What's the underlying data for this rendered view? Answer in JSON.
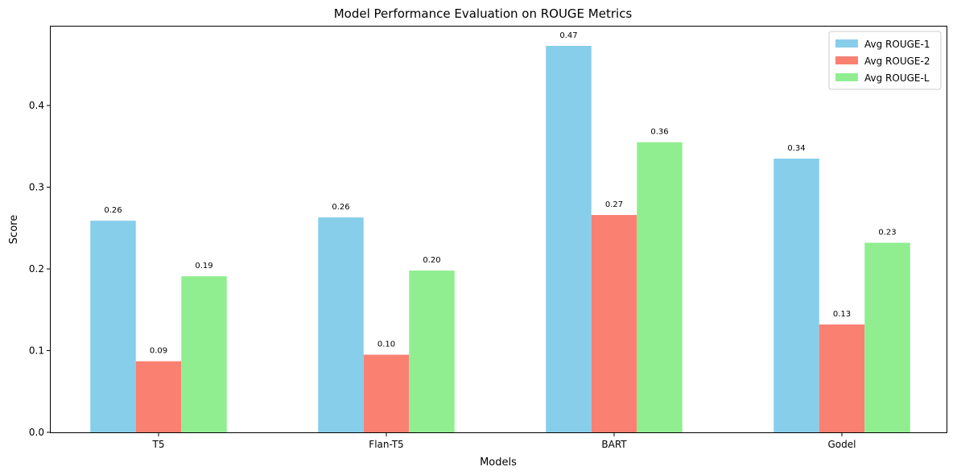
{
  "chart_data": {
    "type": "bar",
    "title": "Model Performance Evaluation on ROUGE Metrics",
    "xlabel": "Models",
    "ylabel": "Score",
    "categories": [
      "T5",
      "Flan-T5",
      "BART",
      "Godel"
    ],
    "series": [
      {
        "name": "Avg ROUGE-1",
        "color": "#87ceeb",
        "values": [
          0.259,
          0.263,
          0.473,
          0.335
        ],
        "labels": [
          "0.26",
          "0.26",
          "0.47",
          "0.34"
        ]
      },
      {
        "name": "Avg ROUGE-2",
        "color": "#fa8072",
        "values": [
          0.087,
          0.095,
          0.266,
          0.132
        ],
        "labels": [
          "0.09",
          "0.10",
          "0.27",
          "0.13"
        ]
      },
      {
        "name": "Avg ROUGE-L",
        "color": "#90ee90",
        "values": [
          0.191,
          0.198,
          0.355,
          0.232
        ],
        "labels": [
          "0.19",
          "0.20",
          "0.36",
          "0.23"
        ]
      }
    ],
    "ylim": [
      0,
      0.4966
    ],
    "yticks": [
      "0.0",
      "0.1",
      "0.2",
      "0.3",
      "0.4"
    ],
    "grid": false,
    "legend_position": "top-right"
  }
}
